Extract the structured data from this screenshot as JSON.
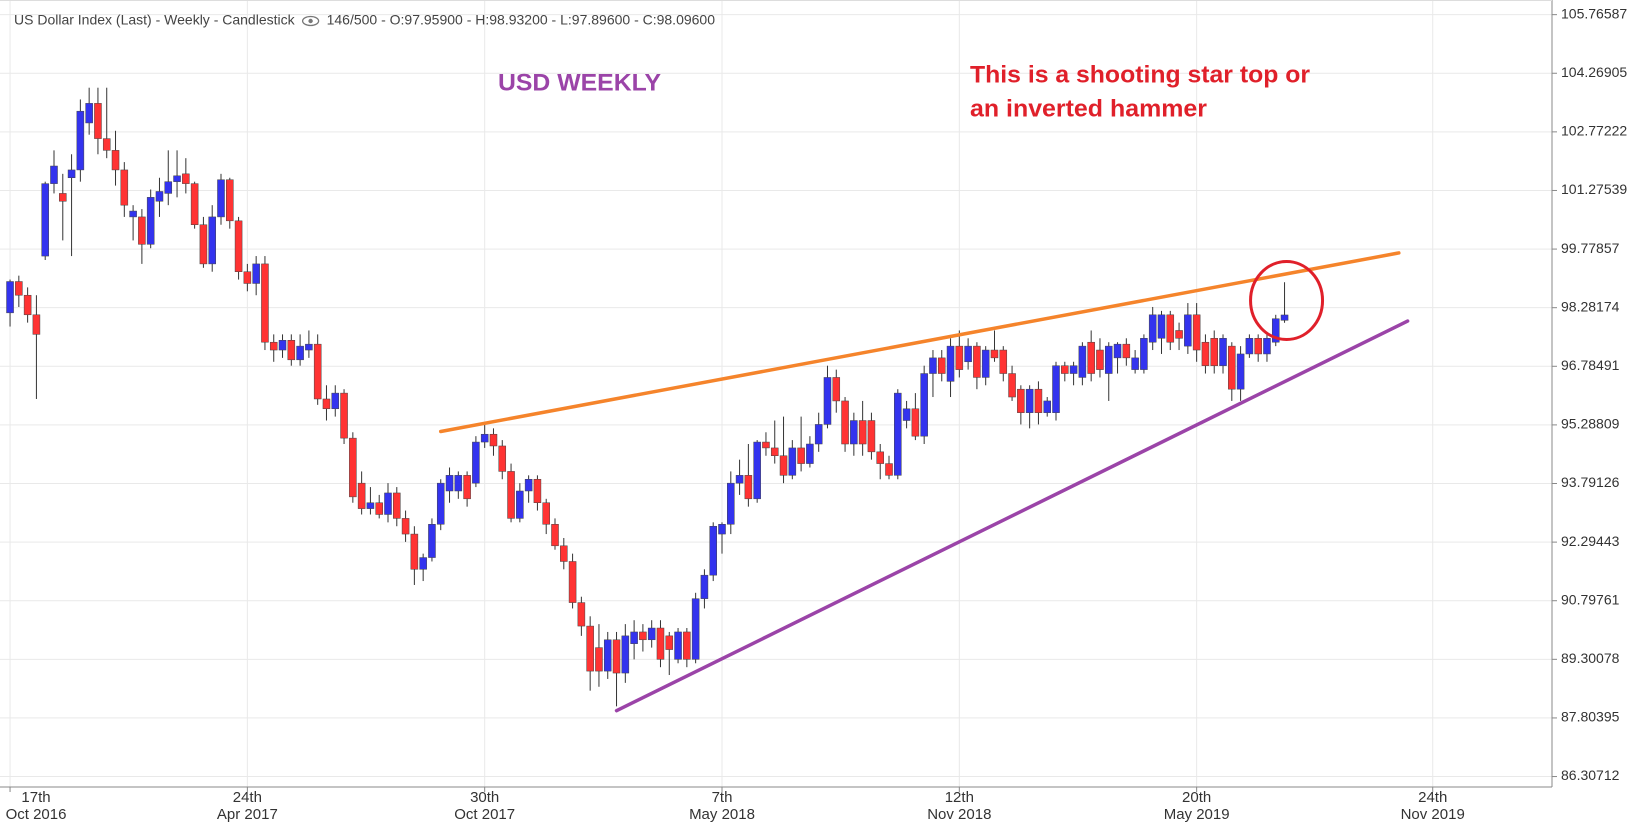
{
  "chart_data": {
    "type": "candlestick",
    "title": "US Dollar Index (Last) - Weekly - Candlestick",
    "subtitle": "146/500 - O:97.95900 - H:98.93200 - L:97.89600 - C:98.09600",
    "annotations": [
      {
        "text": "USD WEEKLY",
        "color": "#9b44a8"
      },
      {
        "text": "This is a shooting star top or",
        "color": "#e0202a"
      },
      {
        "text": "an inverted hammer",
        "color": "#e0202a"
      }
    ],
    "up_color": "#3333ee",
    "down_color": "#ff3333",
    "grid": true,
    "x": [
      "2016-10-17",
      "2016-10-24",
      "2016-10-31",
      "2016-11-07",
      "2016-11-14",
      "2016-11-21",
      "2016-11-28",
      "2016-12-05",
      "2016-12-12",
      "2016-12-19",
      "2016-12-26",
      "2017-01-02",
      "2017-01-09",
      "2017-01-16",
      "2017-01-23",
      "2017-01-30",
      "2017-02-06",
      "2017-02-13",
      "2017-02-20",
      "2017-02-27",
      "2017-03-06",
      "2017-03-13",
      "2017-03-20",
      "2017-03-27",
      "2017-04-03",
      "2017-04-10",
      "2017-04-17",
      "2017-04-24",
      "2017-05-01",
      "2017-05-08",
      "2017-05-15",
      "2017-05-22",
      "2017-05-29",
      "2017-06-05",
      "2017-06-12",
      "2017-06-19",
      "2017-06-26",
      "2017-07-03",
      "2017-07-10",
      "2017-07-17",
      "2017-07-24",
      "2017-07-31",
      "2017-08-07",
      "2017-08-14",
      "2017-08-21",
      "2017-08-28",
      "2017-09-04",
      "2017-09-11",
      "2017-09-18",
      "2017-09-25",
      "2017-10-02",
      "2017-10-09",
      "2017-10-16",
      "2017-10-23",
      "2017-10-30",
      "2017-11-06",
      "2017-11-13",
      "2017-11-20",
      "2017-11-27",
      "2017-12-04",
      "2017-12-11",
      "2017-12-18",
      "2017-12-25",
      "2018-01-01",
      "2018-01-08",
      "2018-01-15",
      "2018-01-22",
      "2018-01-29",
      "2018-02-05",
      "2018-02-12",
      "2018-02-19",
      "2018-02-26",
      "2018-03-05",
      "2018-03-12",
      "2018-03-19",
      "2018-03-26",
      "2018-04-02",
      "2018-04-09",
      "2018-04-16",
      "2018-04-23",
      "2018-04-30",
      "2018-05-07",
      "2018-05-14",
      "2018-05-21",
      "2018-05-28",
      "2018-06-04",
      "2018-06-11",
      "2018-06-18",
      "2018-06-25",
      "2018-07-02",
      "2018-07-09",
      "2018-07-16",
      "2018-07-23",
      "2018-07-30",
      "2018-08-06",
      "2018-08-13",
      "2018-08-20",
      "2018-08-27",
      "2018-09-03",
      "2018-09-10",
      "2018-09-17",
      "2018-09-24",
      "2018-10-01",
      "2018-10-08",
      "2018-10-15",
      "2018-10-22",
      "2018-10-29",
      "2018-11-05",
      "2018-11-12",
      "2018-11-19",
      "2018-11-26",
      "2018-12-03",
      "2018-12-10",
      "2018-12-17",
      "2018-12-24",
      "2018-12-31",
      "2019-01-07",
      "2019-01-14",
      "2019-01-21",
      "2019-01-28",
      "2019-02-04",
      "2019-02-11",
      "2019-02-18",
      "2019-02-25",
      "2019-03-04",
      "2019-03-11",
      "2019-03-18",
      "2019-03-25",
      "2019-04-01",
      "2019-04-08",
      "2019-04-15",
      "2019-04-22",
      "2019-04-29",
      "2019-05-06",
      "2019-05-13",
      "2019-05-20",
      "2019-05-27",
      "2019-06-03",
      "2019-06-10",
      "2019-06-17",
      "2019-06-24",
      "2019-07-01",
      "2019-07-08",
      "2019-07-15",
      "2019-07-22",
      "2019-07-29"
    ],
    "open": [
      98.15,
      98.95,
      98.6,
      98.1,
      99.6,
      101.45,
      101.2,
      101.6,
      101.8,
      103.0,
      103.5,
      102.6,
      102.3,
      101.8,
      100.6,
      100.6,
      99.9,
      101.0,
      101.2,
      101.5,
      101.7,
      101.45,
      100.4,
      99.4,
      100.6,
      101.55,
      100.5,
      99.2,
      98.9,
      99.4,
      97.4,
      97.2,
      97.45,
      96.95,
      97.2,
      97.35,
      95.95,
      95.7,
      96.1,
      94.95,
      93.8,
      93.15,
      93.3,
      93.0,
      93.55,
      92.9,
      92.5,
      91.6,
      91.9,
      92.75,
      93.6,
      93.6,
      94.0,
      93.8,
      94.85,
      95.05,
      94.75,
      94.1,
      92.9,
      93.6,
      93.9,
      93.3,
      92.75,
      92.2,
      91.8,
      90.75,
      90.15,
      89.6,
      89.0,
      89.8,
      88.95,
      89.7,
      90.0,
      89.8,
      90.1,
      89.9,
      89.3,
      90.0,
      89.3,
      90.85,
      91.45,
      92.5,
      92.75,
      93.8,
      94.0,
      93.4,
      94.85,
      94.7,
      94.5,
      94.0,
      94.7,
      94.3,
      94.8,
      95.3,
      96.5,
      95.9,
      94.8,
      95.4,
      95.4,
      94.6,
      94.3,
      94.0,
      95.4,
      95.7,
      95.0,
      96.6,
      97.0,
      96.4,
      97.3,
      96.9,
      97.3,
      96.5,
      97.2,
      97.2,
      96.6,
      96.2,
      95.6,
      96.2,
      95.6,
      95.6,
      96.8,
      96.6,
      96.5,
      97.4,
      97.2,
      96.6,
      97.0,
      97.35,
      96.7,
      96.7,
      97.4,
      97.5,
      98.1,
      97.7,
      97.3,
      98.1,
      97.4,
      97.5,
      96.8,
      97.3,
      96.2,
      97.1,
      97.5,
      97.1,
      97.4,
      97.959
    ],
    "high": [
      99.0,
      99.1,
      98.8,
      98.6,
      101.5,
      102.3,
      101.7,
      102.2,
      103.6,
      103.9,
      103.9,
      103.9,
      102.8,
      102.0,
      100.9,
      100.8,
      101.3,
      101.6,
      102.3,
      102.3,
      102.1,
      101.5,
      100.6,
      100.9,
      101.7,
      101.6,
      100.6,
      99.4,
      99.6,
      99.6,
      97.6,
      97.6,
      97.6,
      97.6,
      97.7,
      97.6,
      96.3,
      96.3,
      96.2,
      95.1,
      94.1,
      93.7,
      93.5,
      93.8,
      93.7,
      93.1,
      92.7,
      92.0,
      92.9,
      93.9,
      94.2,
      94.1,
      94.1,
      95.0,
      95.3,
      95.2,
      94.9,
      94.3,
      93.8,
      94.0,
      94.0,
      93.4,
      92.9,
      92.4,
      92.0,
      90.9,
      90.4,
      90.2,
      90.0,
      90.0,
      90.2,
      90.3,
      90.2,
      90.3,
      90.3,
      90.0,
      90.1,
      90.1,
      91.0,
      91.6,
      92.8,
      92.8,
      94.1,
      94.4,
      94.8,
      94.9,
      95.1,
      95.4,
      95.5,
      94.9,
      95.5,
      95.0,
      95.6,
      96.8,
      96.7,
      96.0,
      95.6,
      95.9,
      95.6,
      94.8,
      94.5,
      96.2,
      95.9,
      96.1,
      96.8,
      97.2,
      97.2,
      97.5,
      97.7,
      97.5,
      97.4,
      97.3,
      97.7,
      97.3,
      96.8,
      96.3,
      96.3,
      96.4,
      96.0,
      96.9,
      96.9,
      96.9,
      97.4,
      97.7,
      97.5,
      97.4,
      97.4,
      97.5,
      97.2,
      97.6,
      98.3,
      98.2,
      98.2,
      97.9,
      98.4,
      98.4,
      97.6,
      97.7,
      97.6,
      97.4,
      97.3,
      97.6,
      97.6,
      97.6,
      98.1,
      98.932
    ],
    "low": [
      97.8,
      98.3,
      97.9,
      95.95,
      99.5,
      101.2,
      100.0,
      99.6,
      101.5,
      102.7,
      102.2,
      102.1,
      101.4,
      100.6,
      100.0,
      99.4,
      99.8,
      100.6,
      100.9,
      101.1,
      101.2,
      100.3,
      99.3,
      99.2,
      100.4,
      100.3,
      99.0,
      98.7,
      98.6,
      97.2,
      96.9,
      97.0,
      96.8,
      96.8,
      97.0,
      95.8,
      95.4,
      95.5,
      94.8,
      93.3,
      93.0,
      93.0,
      92.9,
      92.8,
      92.7,
      92.3,
      91.2,
      91.3,
      91.8,
      92.6,
      93.3,
      93.4,
      93.2,
      93.7,
      94.7,
      94.5,
      93.9,
      92.8,
      92.8,
      93.3,
      93.1,
      92.5,
      92.1,
      91.6,
      90.6,
      89.9,
      88.5,
      88.6,
      88.8,
      88.1,
      88.7,
      89.3,
      89.5,
      89.6,
      89.1,
      88.9,
      89.2,
      89.1,
      89.2,
      90.6,
      91.3,
      92.0,
      92.5,
      93.5,
      93.2,
      93.3,
      94.5,
      94.3,
      93.8,
      93.9,
      94.1,
      94.2,
      94.6,
      95.2,
      95.6,
      94.6,
      94.5,
      94.5,
      94.4,
      93.9,
      93.9,
      93.9,
      95.2,
      94.9,
      94.8,
      96.0,
      96.4,
      96.0,
      96.5,
      96.7,
      96.2,
      96.3,
      96.9,
      96.4,
      95.9,
      95.3,
      95.2,
      95.3,
      95.5,
      95.4,
      96.4,
      96.3,
      96.3,
      96.4,
      96.5,
      95.9,
      96.6,
      96.8,
      96.6,
      96.6,
      97.2,
      97.1,
      97.2,
      97.2,
      97.1,
      96.9,
      96.6,
      96.6,
      96.6,
      95.9,
      95.9,
      97.0,
      96.9,
      96.9,
      97.3,
      97.896
    ],
    "close": [
      98.95,
      98.6,
      98.1,
      97.6,
      101.45,
      101.9,
      101.0,
      101.8,
      103.3,
      103.5,
      102.6,
      102.3,
      101.8,
      100.9,
      100.75,
      99.9,
      101.1,
      101.25,
      101.5,
      101.65,
      101.45,
      100.4,
      99.4,
      100.6,
      101.55,
      100.5,
      99.2,
      98.9,
      99.4,
      97.4,
      97.2,
      97.45,
      96.95,
      97.3,
      97.35,
      95.95,
      95.7,
      96.1,
      94.95,
      93.45,
      93.15,
      93.3,
      93.0,
      93.55,
      92.9,
      92.5,
      91.6,
      91.9,
      92.75,
      93.8,
      94.0,
      94.0,
      93.4,
      94.85,
      95.05,
      94.75,
      94.1,
      92.9,
      93.6,
      93.9,
      93.3,
      92.75,
      92.2,
      91.8,
      90.75,
      90.15,
      89.0,
      89.0,
      89.8,
      88.95,
      89.9,
      90.0,
      89.8,
      90.1,
      89.3,
      89.55,
      90.0,
      89.3,
      90.85,
      91.45,
      92.7,
      92.75,
      93.8,
      94.0,
      93.4,
      94.85,
      94.7,
      94.5,
      94.0,
      94.7,
      94.3,
      94.8,
      95.3,
      96.5,
      95.9,
      94.8,
      95.4,
      94.8,
      94.6,
      94.3,
      94.0,
      96.1,
      95.7,
      95.0,
      96.6,
      97.0,
      96.6,
      97.3,
      96.7,
      97.3,
      96.5,
      97.2,
      97.0,
      96.6,
      96.0,
      95.6,
      96.2,
      95.6,
      95.9,
      96.8,
      96.6,
      96.8,
      97.3,
      96.6,
      96.7,
      97.3,
      97.35,
      97.0,
      97.0,
      97.5,
      98.1,
      98.1,
      97.4,
      97.5,
      98.1,
      97.2,
      96.8,
      96.8,
      97.5,
      96.2,
      97.1,
      97.5,
      97.1,
      97.5,
      98.0,
      98.096
    ],
    "xlim": [
      "2016-10-09",
      "2020-02-27"
    ],
    "xticks": [
      {
        "value": "2016-10-17",
        "label": [
          "17th",
          "Oct 2016"
        ]
      },
      {
        "value": "2017-04-24",
        "label": [
          "24th",
          "Apr 2017"
        ]
      },
      {
        "value": "2017-10-30",
        "label": [
          "30th",
          "Oct 2017"
        ]
      },
      {
        "value": "2018-05-07",
        "label": [
          "7th",
          "May 2018"
        ]
      },
      {
        "value": "2018-11-12",
        "label": [
          "12th",
          "Nov 2018"
        ]
      },
      {
        "value": "2019-05-20",
        "label": [
          "20th",
          "May 2019"
        ]
      },
      {
        "value": "2019-11-24",
        "label": [
          "24th",
          "Nov 2019"
        ]
      }
    ],
    "ylim": [
      86.04,
      106.14
    ],
    "yticks": [
      86.30712,
      87.80395,
      89.30078,
      90.79761,
      92.29443,
      93.79126,
      95.28809,
      96.78491,
      98.28174,
      99.77857,
      101.27539,
      102.77222,
      104.26905,
      105.76587
    ],
    "trendlines": [
      {
        "color": "#f5842b",
        "x": [
          "2017-09-25",
          "2019-10-28"
        ],
        "y": [
          95.12,
          99.68
        ]
      },
      {
        "color": "#9b44a8",
        "x": [
          "2018-02-12",
          "2019-11-04"
        ],
        "y": [
          87.99,
          97.94
        ]
      }
    ]
  }
}
